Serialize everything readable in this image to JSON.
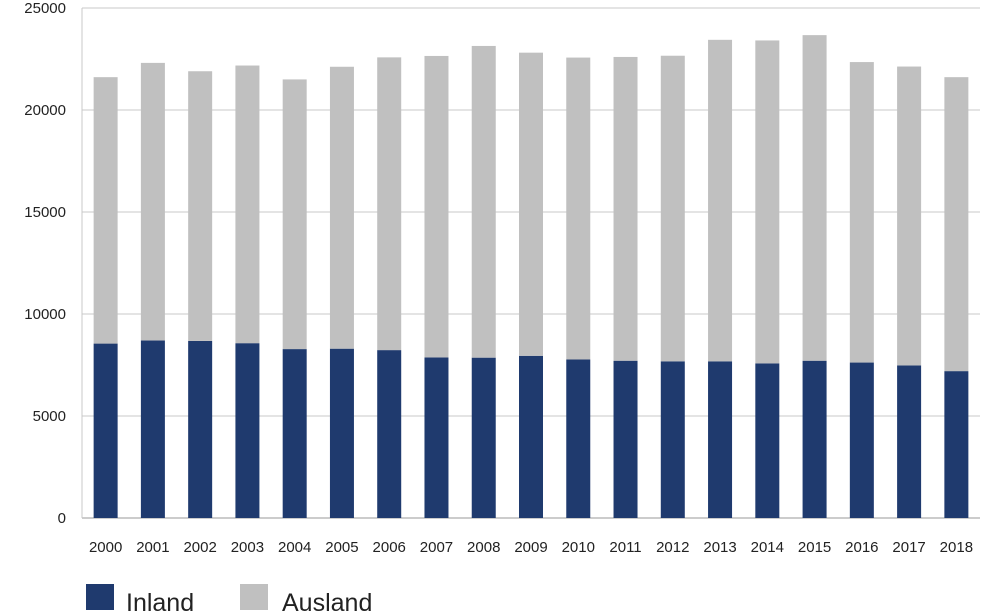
{
  "chart_data": {
    "type": "bar",
    "stacked": true,
    "categories": [
      "2000",
      "2001",
      "2002",
      "2003",
      "2004",
      "2005",
      "2006",
      "2007",
      "2008",
      "2009",
      "2010",
      "2011",
      "2012",
      "2013",
      "2014",
      "2015",
      "2016",
      "2017",
      "2018"
    ],
    "series": [
      {
        "name": "Inland",
        "color": "#1f3a6e",
        "values": [
          8550,
          8700,
          8680,
          8570,
          8280,
          8300,
          8230,
          7870,
          7860,
          7950,
          7770,
          7710,
          7680,
          7680,
          7580,
          7710,
          7620,
          7480,
          7200
        ]
      },
      {
        "name": "Ausland",
        "color": "#c0c0c0",
        "values": [
          13060,
          13610,
          13220,
          13610,
          13220,
          13820,
          14350,
          14780,
          15280,
          14860,
          14800,
          14890,
          14980,
          15760,
          15830,
          15960,
          14730,
          14650,
          14410
        ]
      }
    ],
    "ylim": [
      0,
      25000
    ],
    "yticks": [
      "0",
      "5000",
      "10000",
      "15000",
      "20000",
      "25000"
    ],
    "grid": true,
    "legend_position": "bottom-left"
  }
}
